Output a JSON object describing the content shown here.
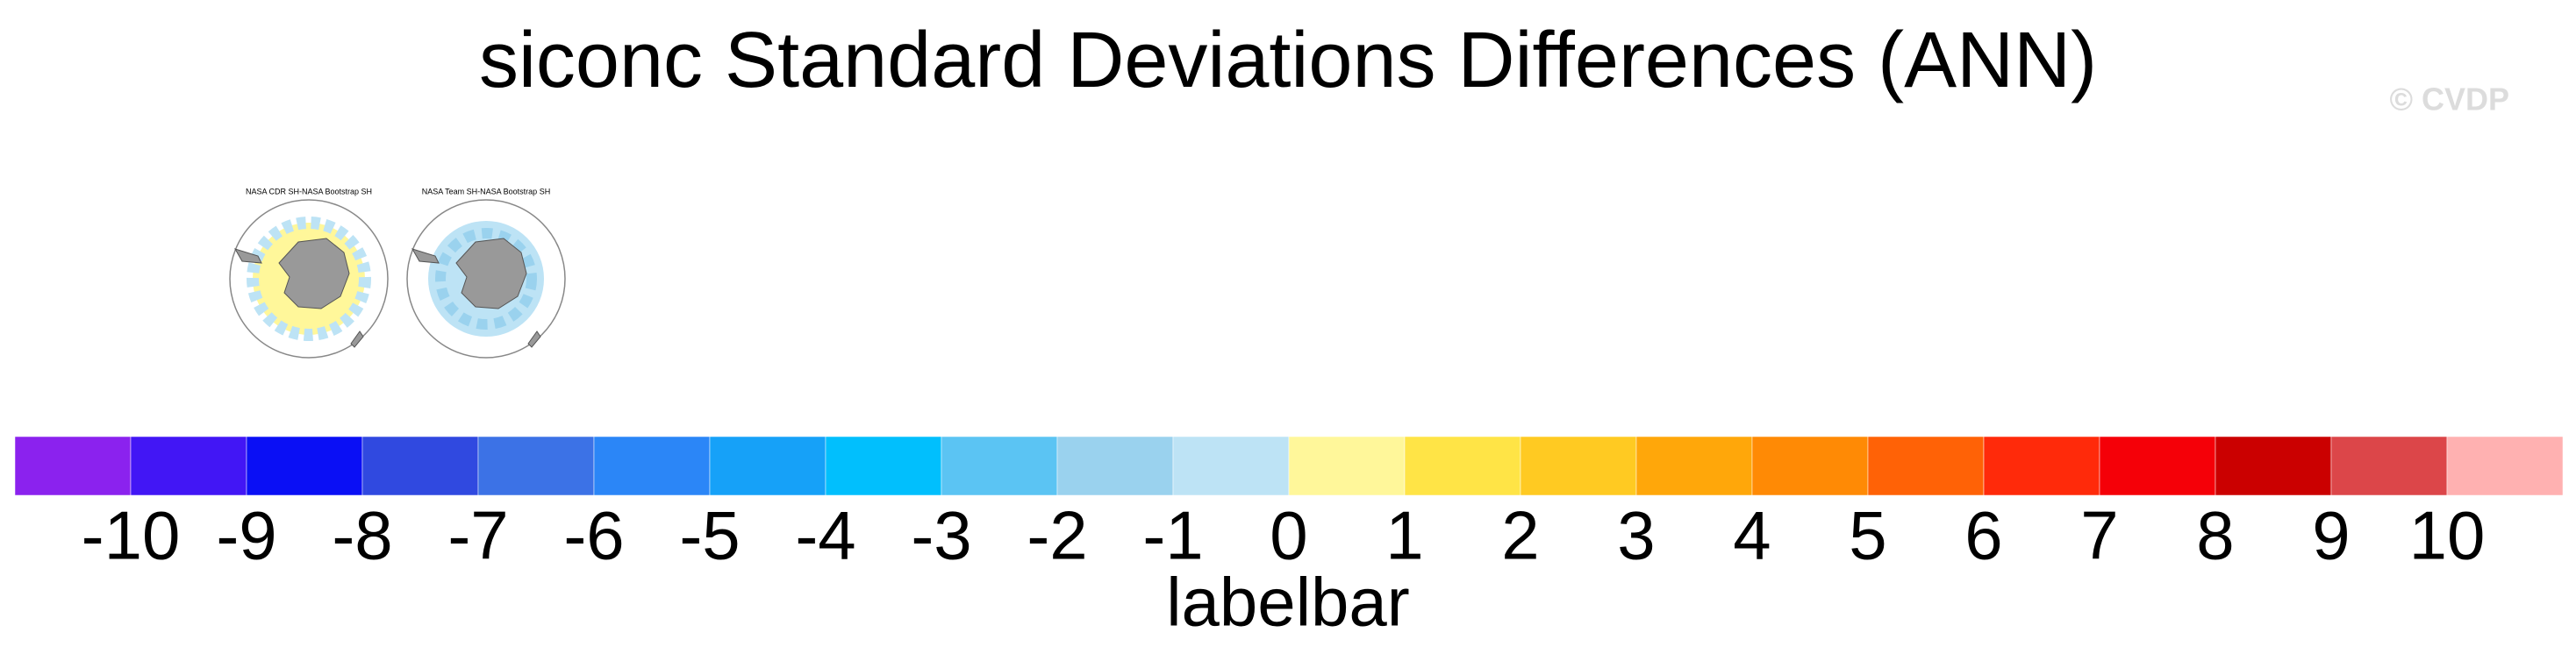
{
  "chart_data": {
    "type": "colorbar",
    "title": "siconc Standard Deviations Differences (ANN)",
    "watermark": "© CVDP",
    "panels": [
      {
        "title": "NASA CDR SH-NASA Bootstrap SH"
      },
      {
        "title": "NASA Team SH-NASA Bootstrap SH"
      }
    ],
    "colorbar": {
      "label": "labelbar",
      "colors": [
        "#8B22EE",
        "#4216F5",
        "#0A0FF5",
        "#3049E0",
        "#3C72E6",
        "#2B86F7",
        "#16A1F8",
        "#01BFFD",
        "#5BC4F3",
        "#9AD2EE",
        "#BDE3F5",
        "#FFF79A",
        "#FFE446",
        "#FFCA22",
        "#FFA70A",
        "#FF8A05",
        "#FF6206",
        "#FF2A0A",
        "#F50008",
        "#CB0000",
        "#DC4649",
        "#FFB1B1"
      ],
      "ticks": [
        -10,
        -9,
        -8,
        -7,
        -6,
        -5,
        -4,
        -3,
        -2,
        -1,
        0,
        1,
        2,
        3,
        4,
        5,
        6,
        7,
        8,
        9,
        10
      ]
    }
  }
}
